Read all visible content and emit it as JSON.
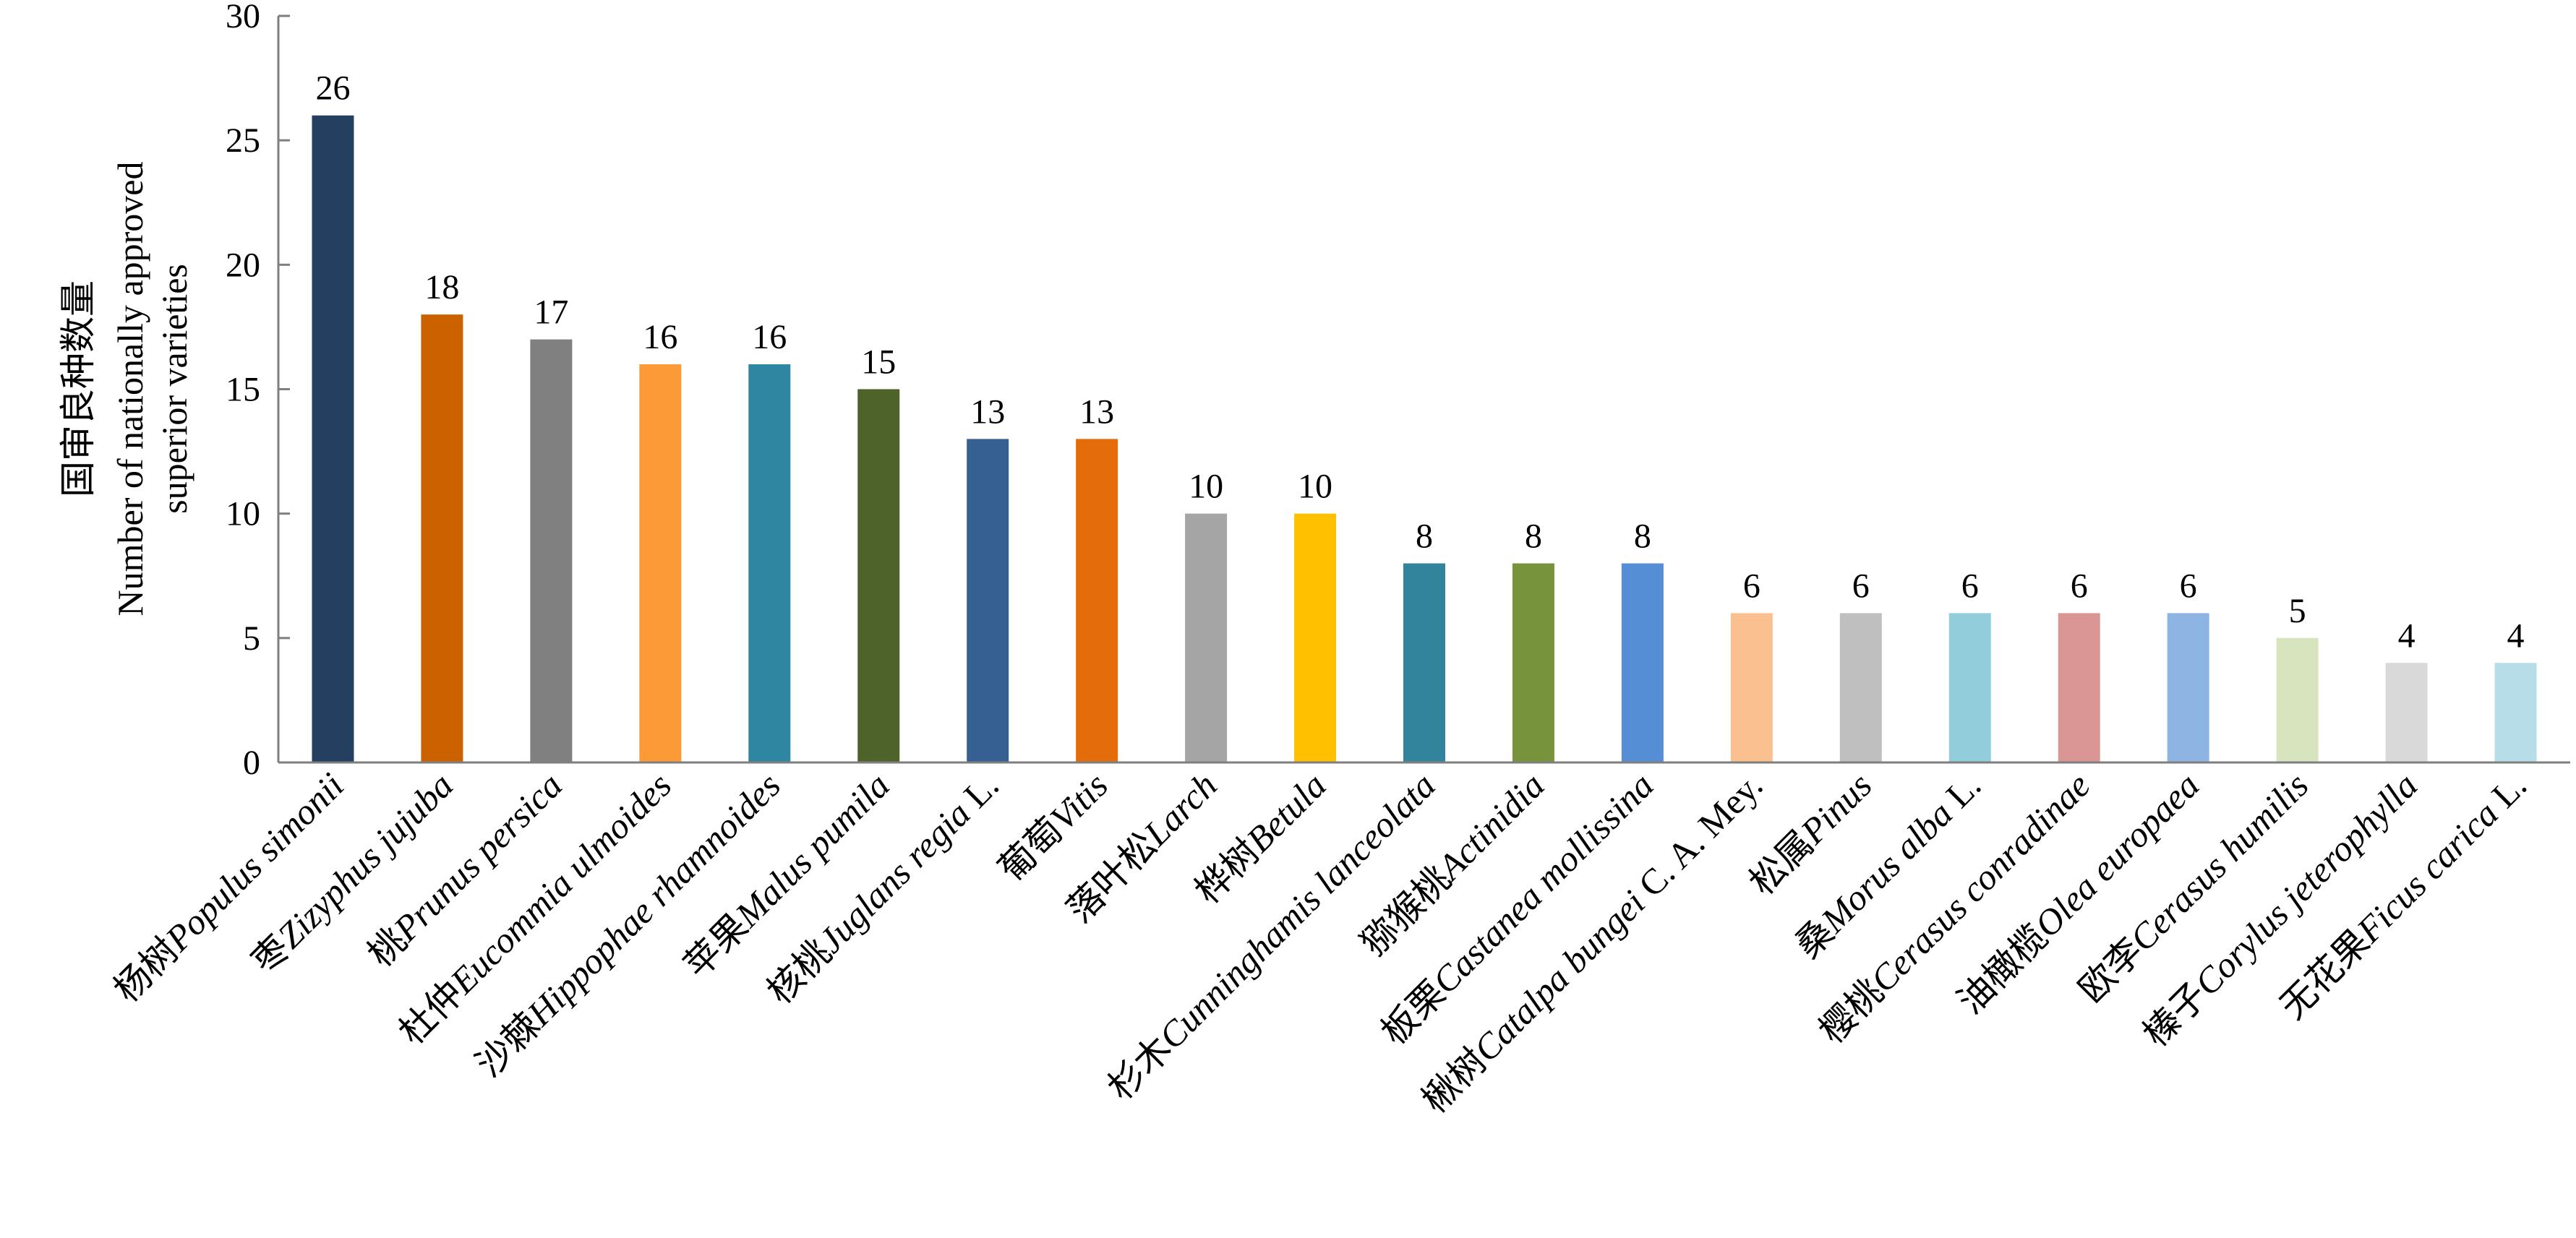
{
  "chart_data": {
    "type": "bar",
    "categories": [
      {
        "cn": "杨树",
        "latin": "Populus simonii",
        "suffix": ""
      },
      {
        "cn": "枣",
        "latin": "Zizyphus jujuba",
        "suffix": ""
      },
      {
        "cn": "桃",
        "latin": "Prunus persica",
        "suffix": ""
      },
      {
        "cn": "杜仲",
        "latin": "Eucommia ulmoides",
        "suffix": ""
      },
      {
        "cn": "沙棘",
        "latin": "Hippophae rhamnoides",
        "suffix": ""
      },
      {
        "cn": "苹果",
        "latin": "Malus pumila",
        "suffix": ""
      },
      {
        "cn": "核桃",
        "latin": "Juglans regia",
        "suffix": " L."
      },
      {
        "cn": "葡萄",
        "latin": "Vitis",
        "suffix": ""
      },
      {
        "cn": "落叶松",
        "latin": "Larch",
        "suffix": ""
      },
      {
        "cn": "桦树",
        "latin": "Betula",
        "suffix": ""
      },
      {
        "cn": "杉木",
        "latin": "Cunninghamis lanceolata",
        "suffix": ""
      },
      {
        "cn": "猕猴桃",
        "latin": "Actinidia",
        "suffix": ""
      },
      {
        "cn": "板栗",
        "latin": "Castanea mollissina",
        "suffix": ""
      },
      {
        "cn": "楸树",
        "latin": "Catalpa bungei",
        "suffix": " C. A. Mey."
      },
      {
        "cn": "松属",
        "latin": "Pinus",
        "suffix": ""
      },
      {
        "cn": "桑",
        "latin": "Morus alba",
        "suffix": " L."
      },
      {
        "cn": "樱桃",
        "latin": "Cerasus conradinae",
        "suffix": ""
      },
      {
        "cn": "油橄榄",
        "latin": "Olea europaea",
        "suffix": ""
      },
      {
        "cn": "欧李",
        "latin": "Cerasus humilis",
        "suffix": ""
      },
      {
        "cn": "榛子",
        "latin": "Corylus jeterophylla",
        "suffix": ""
      },
      {
        "cn": "无花果",
        "latin": "Ficus carica",
        "suffix": " L."
      }
    ],
    "values": [
      26,
      18,
      17,
      16,
      16,
      15,
      13,
      13,
      10,
      10,
      8,
      8,
      8,
      6,
      6,
      6,
      6,
      6,
      5,
      4,
      4
    ],
    "colors": [
      "#243f5f",
      "#cc6100",
      "#808080",
      "#fd9a38",
      "#2e86a0",
      "#4e6329",
      "#365f92",
      "#e46c0a",
      "#a5a5a5",
      "#ffc000",
      "#31849b",
      "#77933c",
      "#558ed5",
      "#fac090",
      "#bfbfbf",
      "#92cddc",
      "#d99694",
      "#8eb4e3",
      "#d7e4bd",
      "#d9d9d9",
      "#b7dee8"
    ],
    "ylabel_cn": "国审良种数量",
    "ylabel_en_1": "Number of nationally approved",
    "ylabel_en_2": "superior varieties",
    "ylim": [
      0,
      30
    ],
    "yticks": [
      0,
      5,
      10,
      15,
      20,
      25,
      30
    ],
    "title": "",
    "xlabel": "",
    "grid": false,
    "legend": "none"
  }
}
